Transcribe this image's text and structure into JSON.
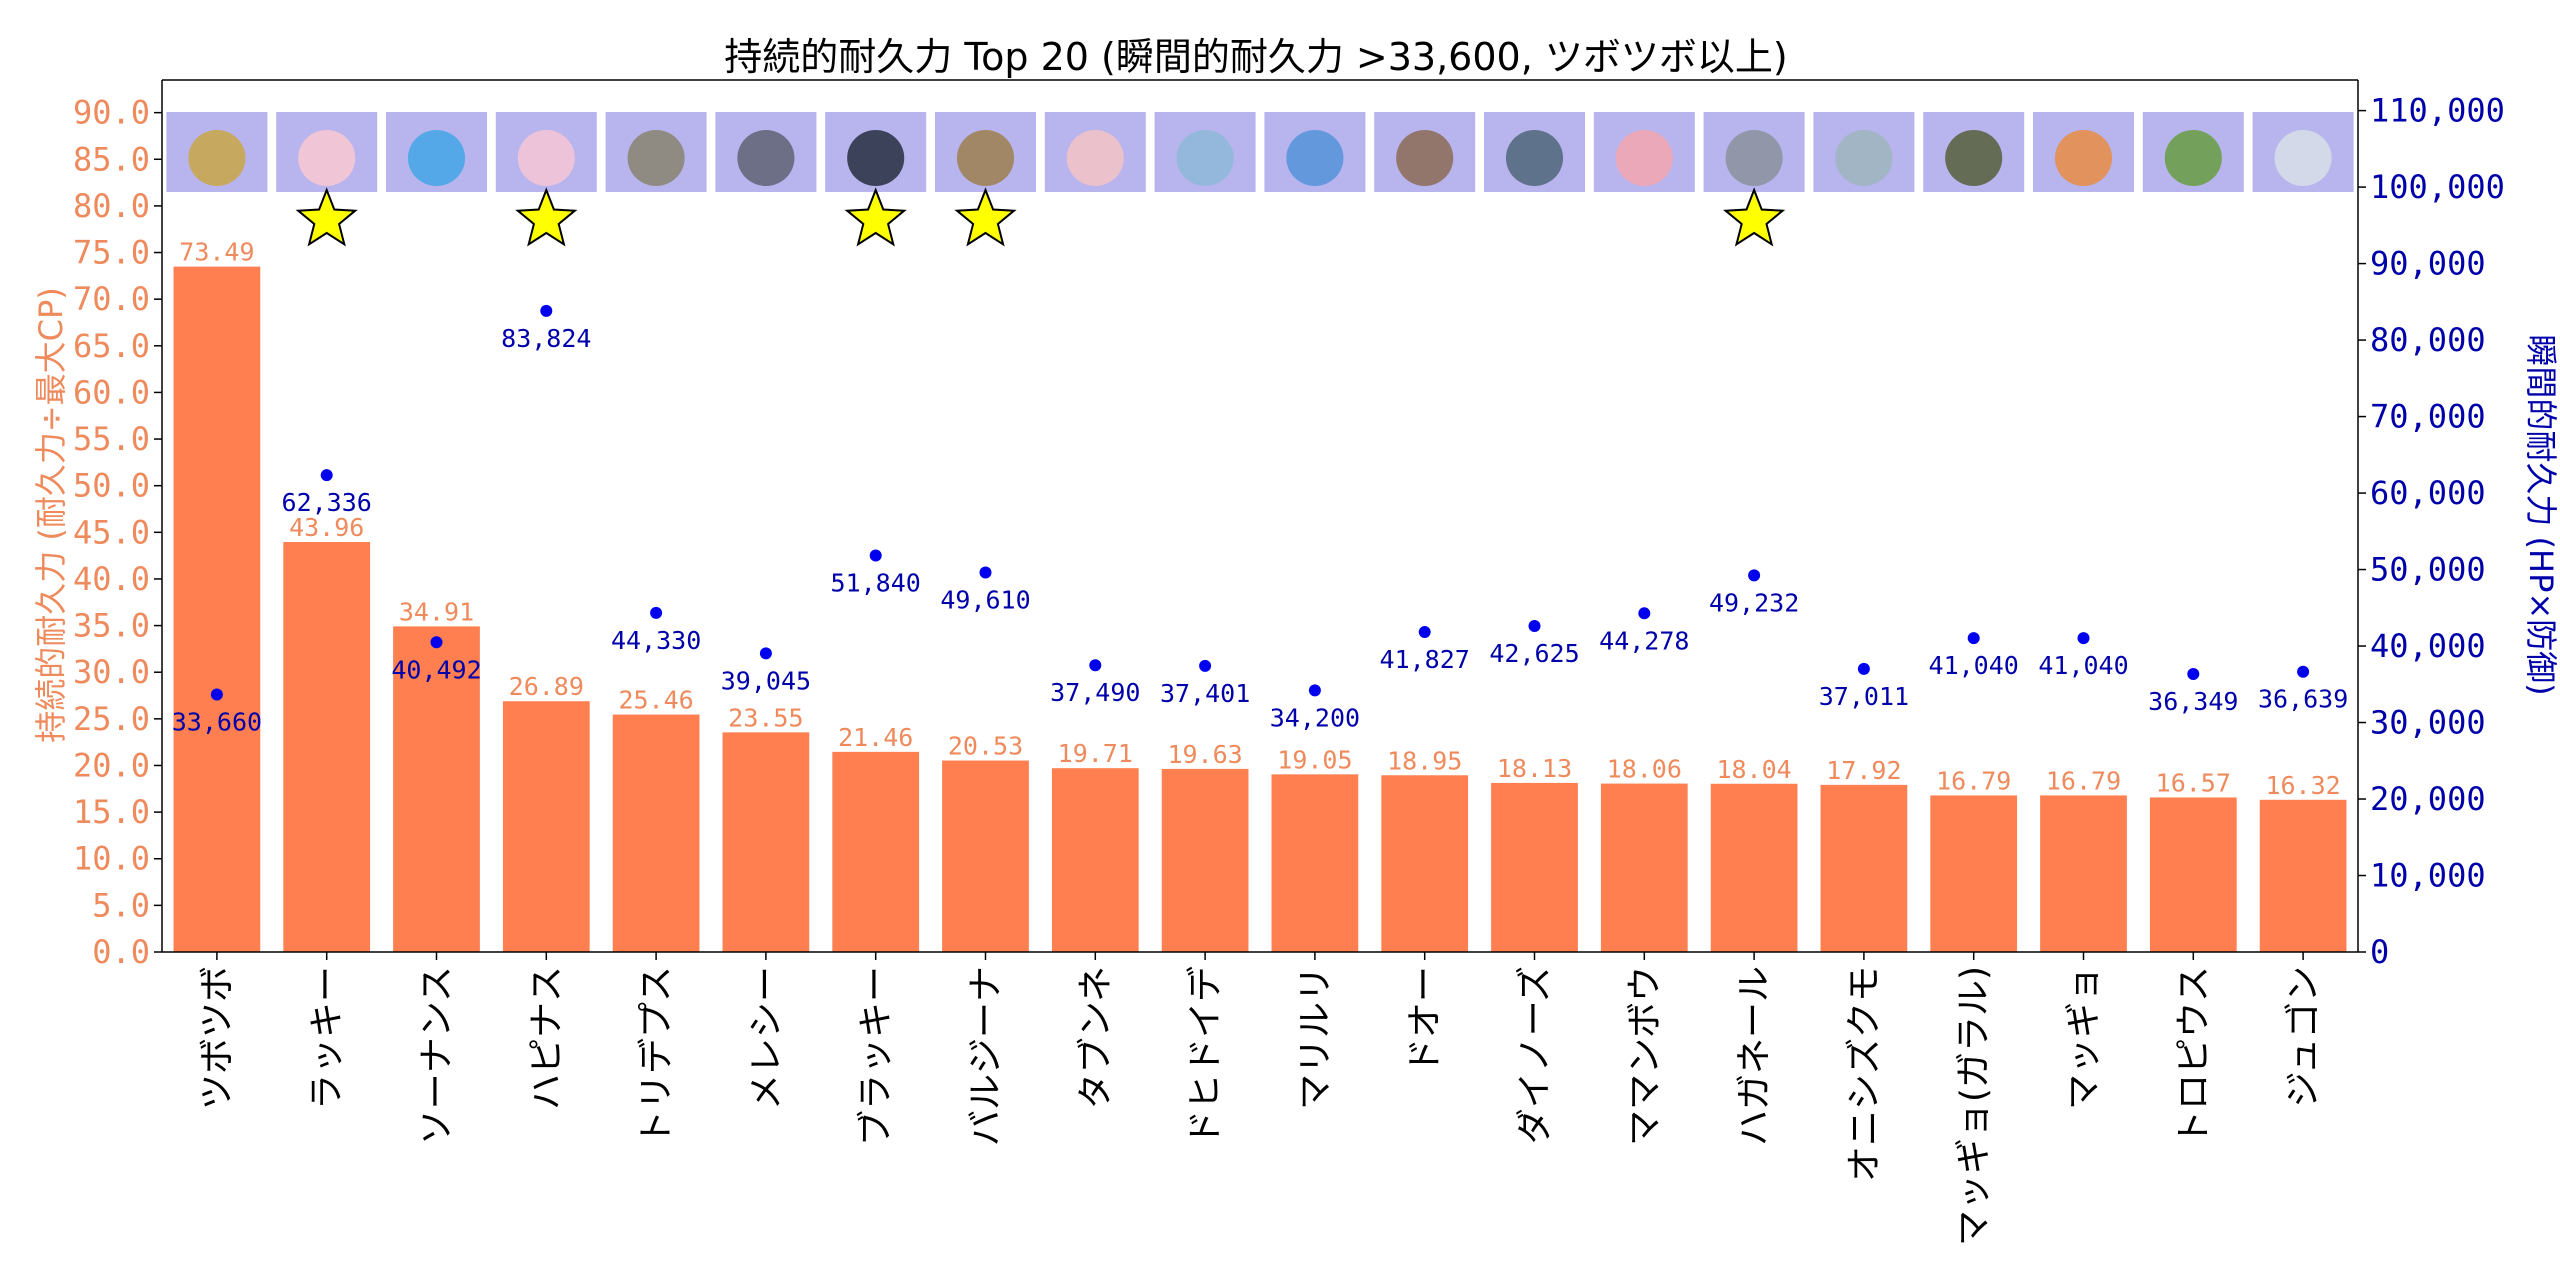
{
  "chart_data": {
    "type": "bar",
    "title": "持続的耐久力 Top 20 (瞬間的耐久力 >33,600, ツボツボ以上)",
    "ylabel_left": "持続的耐久力 (耐久力÷最大CP)",
    "ylabel_right": "瞬間的耐久力 (HP×防御)",
    "ylim_left": [
      0,
      93.5
    ],
    "ylim_right": [
      0,
      114000
    ],
    "yticks_left": [
      "0.0",
      "5.0",
      "10.0",
      "15.0",
      "20.0",
      "25.0",
      "30.0",
      "35.0",
      "40.0",
      "45.0",
      "50.0",
      "55.0",
      "60.0",
      "65.0",
      "70.0",
      "75.0",
      "80.0",
      "85.0",
      "90.0"
    ],
    "yticks_right": [
      "0",
      "10,000",
      "20,000",
      "30,000",
      "40,000",
      "50,000",
      "60,000",
      "70,000",
      "80,000",
      "90,000",
      "100,000",
      "110,000"
    ],
    "categories": [
      "ツボツボ",
      "ラッキー",
      "ソーナンス",
      "ハピナス",
      "トリデプス",
      "メレシー",
      "ブラッキー",
      "バルジーナ",
      "タブンネ",
      "ドヒドイデ",
      "マリルリ",
      "ドオー",
      "ダイノーズ",
      "ママンボウ",
      "ハガネール",
      "オニシズクモ",
      "マッギョ(ガラル)",
      "マッギョ",
      "トロピウス",
      "ジュゴン"
    ],
    "series": [
      {
        "axis": "left",
        "kind": "bar",
        "color": "#ff7f50",
        "values": [
          73.49,
          43.96,
          34.91,
          26.89,
          25.46,
          23.55,
          21.46,
          20.53,
          19.71,
          19.63,
          19.05,
          18.95,
          18.13,
          18.06,
          18.04,
          17.92,
          16.79,
          16.79,
          16.57,
          16.32
        ],
        "labels": [
          "73.49",
          "43.96",
          "34.91",
          "26.89",
          "25.46",
          "23.55",
          "21.46",
          "20.53",
          "19.71",
          "19.63",
          "19.05",
          "18.95",
          "18.13",
          "18.06",
          "18.04",
          "17.92",
          "16.79",
          "16.79",
          "16.57",
          "16.32"
        ]
      },
      {
        "axis": "right",
        "kind": "scatter",
        "color": "#0000ee",
        "values": [
          33660,
          62336,
          40492,
          83824,
          44330,
          39045,
          51840,
          49610,
          37490,
          37401,
          34200,
          41827,
          42625,
          44278,
          49232,
          37011,
          41040,
          41040,
          36349,
          36639
        ],
        "labels": [
          "33,660",
          "62,336",
          "40,492",
          "83,824",
          "44,330",
          "39,045",
          "51,840",
          "49,610",
          "37,490",
          "37,401",
          "34,200",
          "41,827",
          "42,625",
          "44,278",
          "49,232",
          "37,011",
          "41,040",
          "41,040",
          "36,349",
          "36,639"
        ]
      }
    ],
    "starred": [
      false,
      true,
      false,
      true,
      false,
      false,
      true,
      true,
      false,
      false,
      false,
      false,
      false,
      false,
      true,
      false,
      false,
      false,
      false,
      false
    ],
    "thumb_tones": [
      "#c9a64f",
      "#f6c6d2",
      "#49a6e6",
      "#f3c4d6",
      "#8b8676",
      "#64677a",
      "#2e3548",
      "#a08256",
      "#f1c2c8",
      "#8fb8d8",
      "#5a95d9",
      "#8f6f5c",
      "#556a80",
      "#f0a6b2",
      "#8d93a0",
      "#9fb5c0",
      "#5b6445",
      "#e68e4c",
      "#6b9f4a",
      "#d7dde8"
    ],
    "grid": false,
    "legend": "none"
  }
}
